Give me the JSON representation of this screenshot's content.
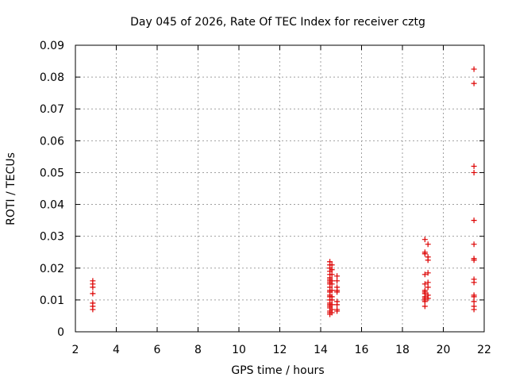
{
  "chart_data": {
    "type": "scatter",
    "title": "Day 045 of 2026, Rate Of TEC Index for receiver cztg",
    "xlabel": "GPS time / hours",
    "ylabel": "ROTI / TECUs",
    "xlim": [
      2,
      22
    ],
    "ylim": [
      0,
      0.09
    ],
    "xticks": [
      2,
      4,
      6,
      8,
      10,
      12,
      14,
      16,
      18,
      20,
      22
    ],
    "xtick_labels": [
      "2",
      "4",
      "6",
      "8",
      "10",
      "12",
      "14",
      "16",
      "18",
      "20",
      "22"
    ],
    "yticks": [
      0,
      0.01,
      0.02,
      0.03,
      0.04,
      0.05,
      0.06,
      0.07,
      0.08,
      0.09
    ],
    "ytick_labels": [
      "0",
      "0.01",
      "0.02",
      "0.03",
      "0.04",
      "0.05",
      "0.06",
      "0.07",
      "0.08",
      "0.09"
    ],
    "grid": true,
    "marker": "+",
    "color": "#dd0000",
    "points": [
      [
        2.85,
        0.016
      ],
      [
        2.85,
        0.015
      ],
      [
        2.85,
        0.014
      ],
      [
        2.85,
        0.012
      ],
      [
        2.85,
        0.009
      ],
      [
        2.85,
        0.008
      ],
      [
        2.85,
        0.007
      ],
      [
        14.45,
        0.022
      ],
      [
        14.45,
        0.021
      ],
      [
        14.45,
        0.02
      ],
      [
        14.45,
        0.019
      ],
      [
        14.45,
        0.018
      ],
      [
        14.45,
        0.017
      ],
      [
        14.45,
        0.0165
      ],
      [
        14.45,
        0.016
      ],
      [
        14.45,
        0.0155
      ],
      [
        14.45,
        0.015
      ],
      [
        14.45,
        0.014
      ],
      [
        14.45,
        0.013
      ],
      [
        14.45,
        0.0125
      ],
      [
        14.45,
        0.0115
      ],
      [
        14.45,
        0.011
      ],
      [
        14.45,
        0.01
      ],
      [
        14.45,
        0.009
      ],
      [
        14.45,
        0.0085
      ],
      [
        14.45,
        0.008
      ],
      [
        14.45,
        0.0075
      ],
      [
        14.45,
        0.0065
      ],
      [
        14.45,
        0.006
      ],
      [
        14.45,
        0.0055
      ],
      [
        14.55,
        0.021
      ],
      [
        14.55,
        0.0195
      ],
      [
        14.55,
        0.018
      ],
      [
        14.55,
        0.016
      ],
      [
        14.55,
        0.015
      ],
      [
        14.55,
        0.013
      ],
      [
        14.55,
        0.011
      ],
      [
        14.55,
        0.01
      ],
      [
        14.55,
        0.0085
      ],
      [
        14.55,
        0.007
      ],
      [
        14.55,
        0.006
      ],
      [
        14.8,
        0.0175
      ],
      [
        14.8,
        0.016
      ],
      [
        14.8,
        0.014
      ],
      [
        14.8,
        0.013
      ],
      [
        14.8,
        0.0125
      ],
      [
        14.8,
        0.0095
      ],
      [
        14.8,
        0.0085
      ],
      [
        14.8,
        0.007
      ],
      [
        14.8,
        0.0065
      ],
      [
        19.1,
        0.029
      ],
      [
        19.1,
        0.025
      ],
      [
        19.1,
        0.0245
      ],
      [
        19.1,
        0.018
      ],
      [
        19.1,
        0.015
      ],
      [
        19.1,
        0.013
      ],
      [
        19.1,
        0.0125
      ],
      [
        19.1,
        0.012
      ],
      [
        19.1,
        0.011
      ],
      [
        19.1,
        0.0105
      ],
      [
        19.1,
        0.01
      ],
      [
        19.1,
        0.0095
      ],
      [
        19.1,
        0.008
      ],
      [
        19.25,
        0.0275
      ],
      [
        19.25,
        0.0235
      ],
      [
        19.25,
        0.0225
      ],
      [
        19.25,
        0.0185
      ],
      [
        19.25,
        0.0155
      ],
      [
        19.25,
        0.014
      ],
      [
        19.25,
        0.0115
      ],
      [
        19.25,
        0.0105
      ],
      [
        21.5,
        0.0825
      ],
      [
        21.5,
        0.078
      ],
      [
        21.5,
        0.052
      ],
      [
        21.5,
        0.05
      ],
      [
        21.5,
        0.035
      ],
      [
        21.5,
        0.0275
      ],
      [
        21.5,
        0.023
      ],
      [
        21.5,
        0.0225
      ],
      [
        21.5,
        0.0165
      ],
      [
        21.5,
        0.0155
      ],
      [
        21.5,
        0.0115
      ],
      [
        21.5,
        0.011
      ],
      [
        21.5,
        0.0095
      ],
      [
        21.5,
        0.008
      ],
      [
        21.5,
        0.007
      ]
    ]
  }
}
